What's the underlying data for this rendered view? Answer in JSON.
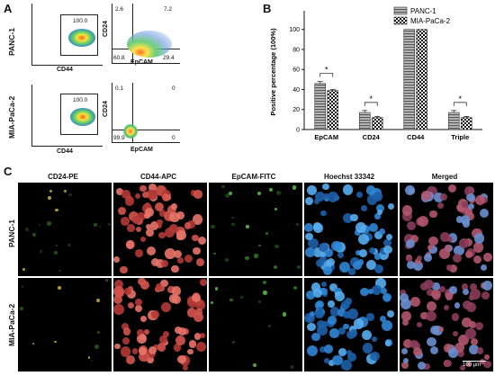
{
  "panel_letters": {
    "a": "A",
    "b": "B",
    "c": "C"
  },
  "flow": {
    "rows": [
      {
        "label": "PANC-1",
        "gate_value": "100.0",
        "x_axis": "CD44",
        "quad": {
          "ul": "2.6",
          "ur": "7.2",
          "ll": "60.8",
          "lr": "29.4"
        },
        "quad_x": "EpCAM",
        "quad_y": "CD24"
      },
      {
        "label": "MIA-PaCa-2",
        "gate_value": "100.0",
        "x_axis": "CD44",
        "quad": {
          "ul": "0.1",
          "ur": "0",
          "ll": "99.9",
          "lr": "0"
        },
        "quad_x": "EpCAM",
        "quad_y": "CD24"
      }
    ]
  },
  "chart_data": {
    "type": "bar",
    "categories": [
      "EpCAM",
      "CD24",
      "CD44",
      "Triple"
    ],
    "series": [
      {
        "name": "PANC-1",
        "values": [
          46,
          17,
          100,
          17
        ],
        "errors": [
          2,
          2,
          0,
          2
        ],
        "pattern": "horizontal-lines",
        "color": "#6e6e6e"
      },
      {
        "name": "MIA-PaCa-2",
        "values": [
          39,
          12,
          100,
          12
        ],
        "errors": [
          1,
          1,
          0,
          1
        ],
        "pattern": "checker",
        "color": "#222222"
      }
    ],
    "ylabel": "Positive percentage (100%)",
    "yticks": [
      0,
      20,
      40,
      60,
      80,
      100
    ],
    "ylim": [
      0,
      115
    ],
    "significance": [
      "*",
      "*",
      "",
      "*"
    ],
    "legend_position": "top-right"
  },
  "micro": {
    "columns": [
      "CD24-PE",
      "CD44-APC",
      "EpCAM-FITC",
      "Hoechst 33342",
      "Merged"
    ],
    "rows": [
      "PANC-1",
      "MIA-PaCa-2"
    ],
    "scale_label": "100 μm"
  }
}
